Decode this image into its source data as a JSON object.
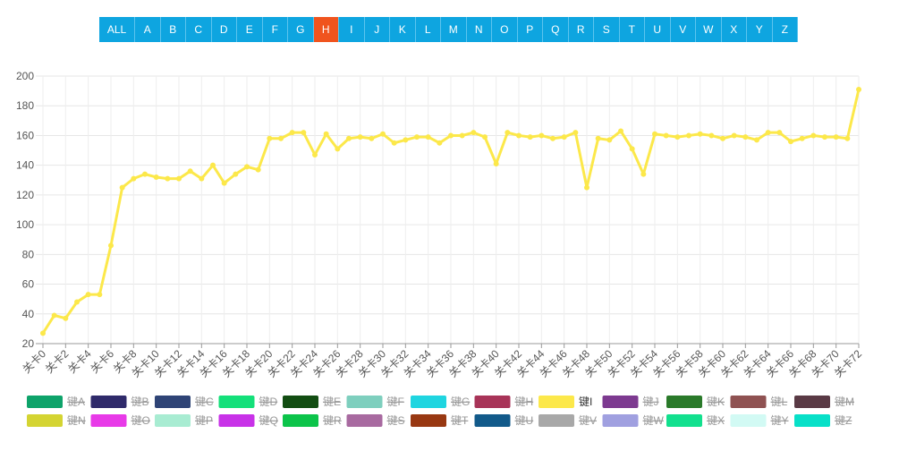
{
  "nav": {
    "buttons": [
      "ALL",
      "A",
      "B",
      "C",
      "D",
      "E",
      "F",
      "G",
      "H",
      "I",
      "J",
      "K",
      "L",
      "M",
      "N",
      "O",
      "P",
      "Q",
      "R",
      "S",
      "T",
      "U",
      "V",
      "W",
      "X",
      "Y",
      "Z"
    ],
    "active": 8
  },
  "chart_data": {
    "type": "line",
    "categories": [
      "关卡0",
      null,
      "关卡2",
      null,
      "关卡4",
      null,
      "关卡6",
      null,
      "关卡8",
      null,
      "关卡10",
      null,
      "关卡12",
      null,
      "关卡14",
      null,
      "关卡16",
      null,
      "关卡18",
      null,
      "关卡20",
      null,
      "关卡22",
      null,
      "关卡24",
      null,
      "关卡26",
      null,
      "关卡28",
      null,
      "关卡30",
      null,
      "关卡32",
      null,
      "关卡34",
      null,
      "关卡36",
      null,
      "关卡38",
      null,
      "关卡40",
      null,
      "关卡42",
      null,
      "关卡44",
      null,
      "关卡46",
      null,
      "关卡48",
      null,
      "关卡50",
      null,
      "关卡52",
      null,
      "关卡54",
      null,
      "关卡56",
      null,
      "关卡58",
      null,
      "关卡60",
      null,
      "关卡62",
      null,
      "关卡64",
      null,
      "关卡66",
      null,
      "关卡68",
      null,
      "关卡70",
      null,
      "关卡72"
    ],
    "ylim": [
      20,
      200
    ],
    "yticks": [
      20,
      40,
      60,
      80,
      100,
      120,
      140,
      160,
      180,
      200
    ],
    "grid": true,
    "series": [
      {
        "name": "键A",
        "color": "#0ea36a",
        "hidden": true
      },
      {
        "name": "键B",
        "color": "#2f2a6a",
        "hidden": true
      },
      {
        "name": "键C",
        "color": "#2f4476",
        "hidden": true
      },
      {
        "name": "键D",
        "color": "#14e07a",
        "hidden": true
      },
      {
        "name": "键E",
        "color": "#124d12",
        "hidden": true
      },
      {
        "name": "键F",
        "color": "#7ecfbe",
        "hidden": true
      },
      {
        "name": "键G",
        "color": "#1fd5e0",
        "hidden": true
      },
      {
        "name": "键H",
        "color": "#a83458",
        "hidden": true
      },
      {
        "name": "键I",
        "color": "#fce84a",
        "hidden": false,
        "values": [
          27,
          39,
          37,
          48,
          53,
          53,
          86,
          125,
          131,
          134,
          132,
          131,
          131,
          136,
          131,
          140,
          128,
          134,
          139,
          137,
          158,
          158,
          162,
          162,
          147,
          161,
          151,
          158,
          159,
          158,
          161,
          155,
          157,
          159,
          159,
          155,
          160,
          160,
          162,
          159,
          141,
          162,
          160,
          159,
          160,
          158,
          159,
          162,
          125,
          158,
          157,
          163,
          151,
          134,
          161,
          160,
          159,
          160,
          161,
          160,
          158,
          160,
          159,
          157,
          162,
          162,
          156,
          158,
          160,
          159,
          159,
          158,
          191
        ]
      },
      {
        "name": "键J",
        "color": "#7d3a90",
        "hidden": true
      },
      {
        "name": "键K",
        "color": "#2a7a2a",
        "hidden": true
      },
      {
        "name": "键L",
        "color": "#8f5252",
        "hidden": true
      },
      {
        "name": "键M",
        "color": "#5a3a45",
        "hidden": true
      },
      {
        "name": "键N",
        "color": "#d4d432",
        "hidden": true
      },
      {
        "name": "键O",
        "color": "#e83ae8",
        "hidden": true
      },
      {
        "name": "键P",
        "color": "#a8ecd2",
        "hidden": true
      },
      {
        "name": "键Q",
        "color": "#c832e8",
        "hidden": true
      },
      {
        "name": "键R",
        "color": "#0cc44a",
        "hidden": true
      },
      {
        "name": "键S",
        "color": "#a86aa0",
        "hidden": true
      },
      {
        "name": "键T",
        "color": "#983812",
        "hidden": true
      },
      {
        "name": "键U",
        "color": "#125a8a",
        "hidden": true
      },
      {
        "name": "键V",
        "color": "#a8a8a8",
        "hidden": true
      },
      {
        "name": "键W",
        "color": "#a0a0e0",
        "hidden": true
      },
      {
        "name": "键X",
        "color": "#12e08e",
        "hidden": true
      },
      {
        "name": "键Y",
        "color": "#d2faf4",
        "hidden": true
      },
      {
        "name": "键Z",
        "color": "#08e0c8",
        "hidden": true
      }
    ]
  }
}
